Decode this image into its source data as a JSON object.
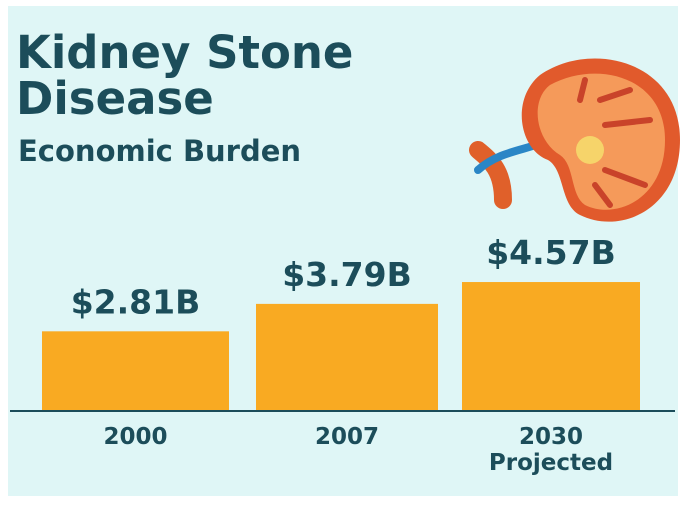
{
  "chart_data": {
    "type": "bar",
    "title": "Kidney Stone Disease",
    "subtitle": "Economic Burden",
    "categories": [
      "2000",
      "2007",
      "2030 Projected"
    ],
    "values": [
      2.81,
      3.79,
      4.57
    ],
    "value_labels": [
      "$2.81B",
      "$3.79B",
      "$4.57B"
    ],
    "color": "#f9aa22"
  }
}
